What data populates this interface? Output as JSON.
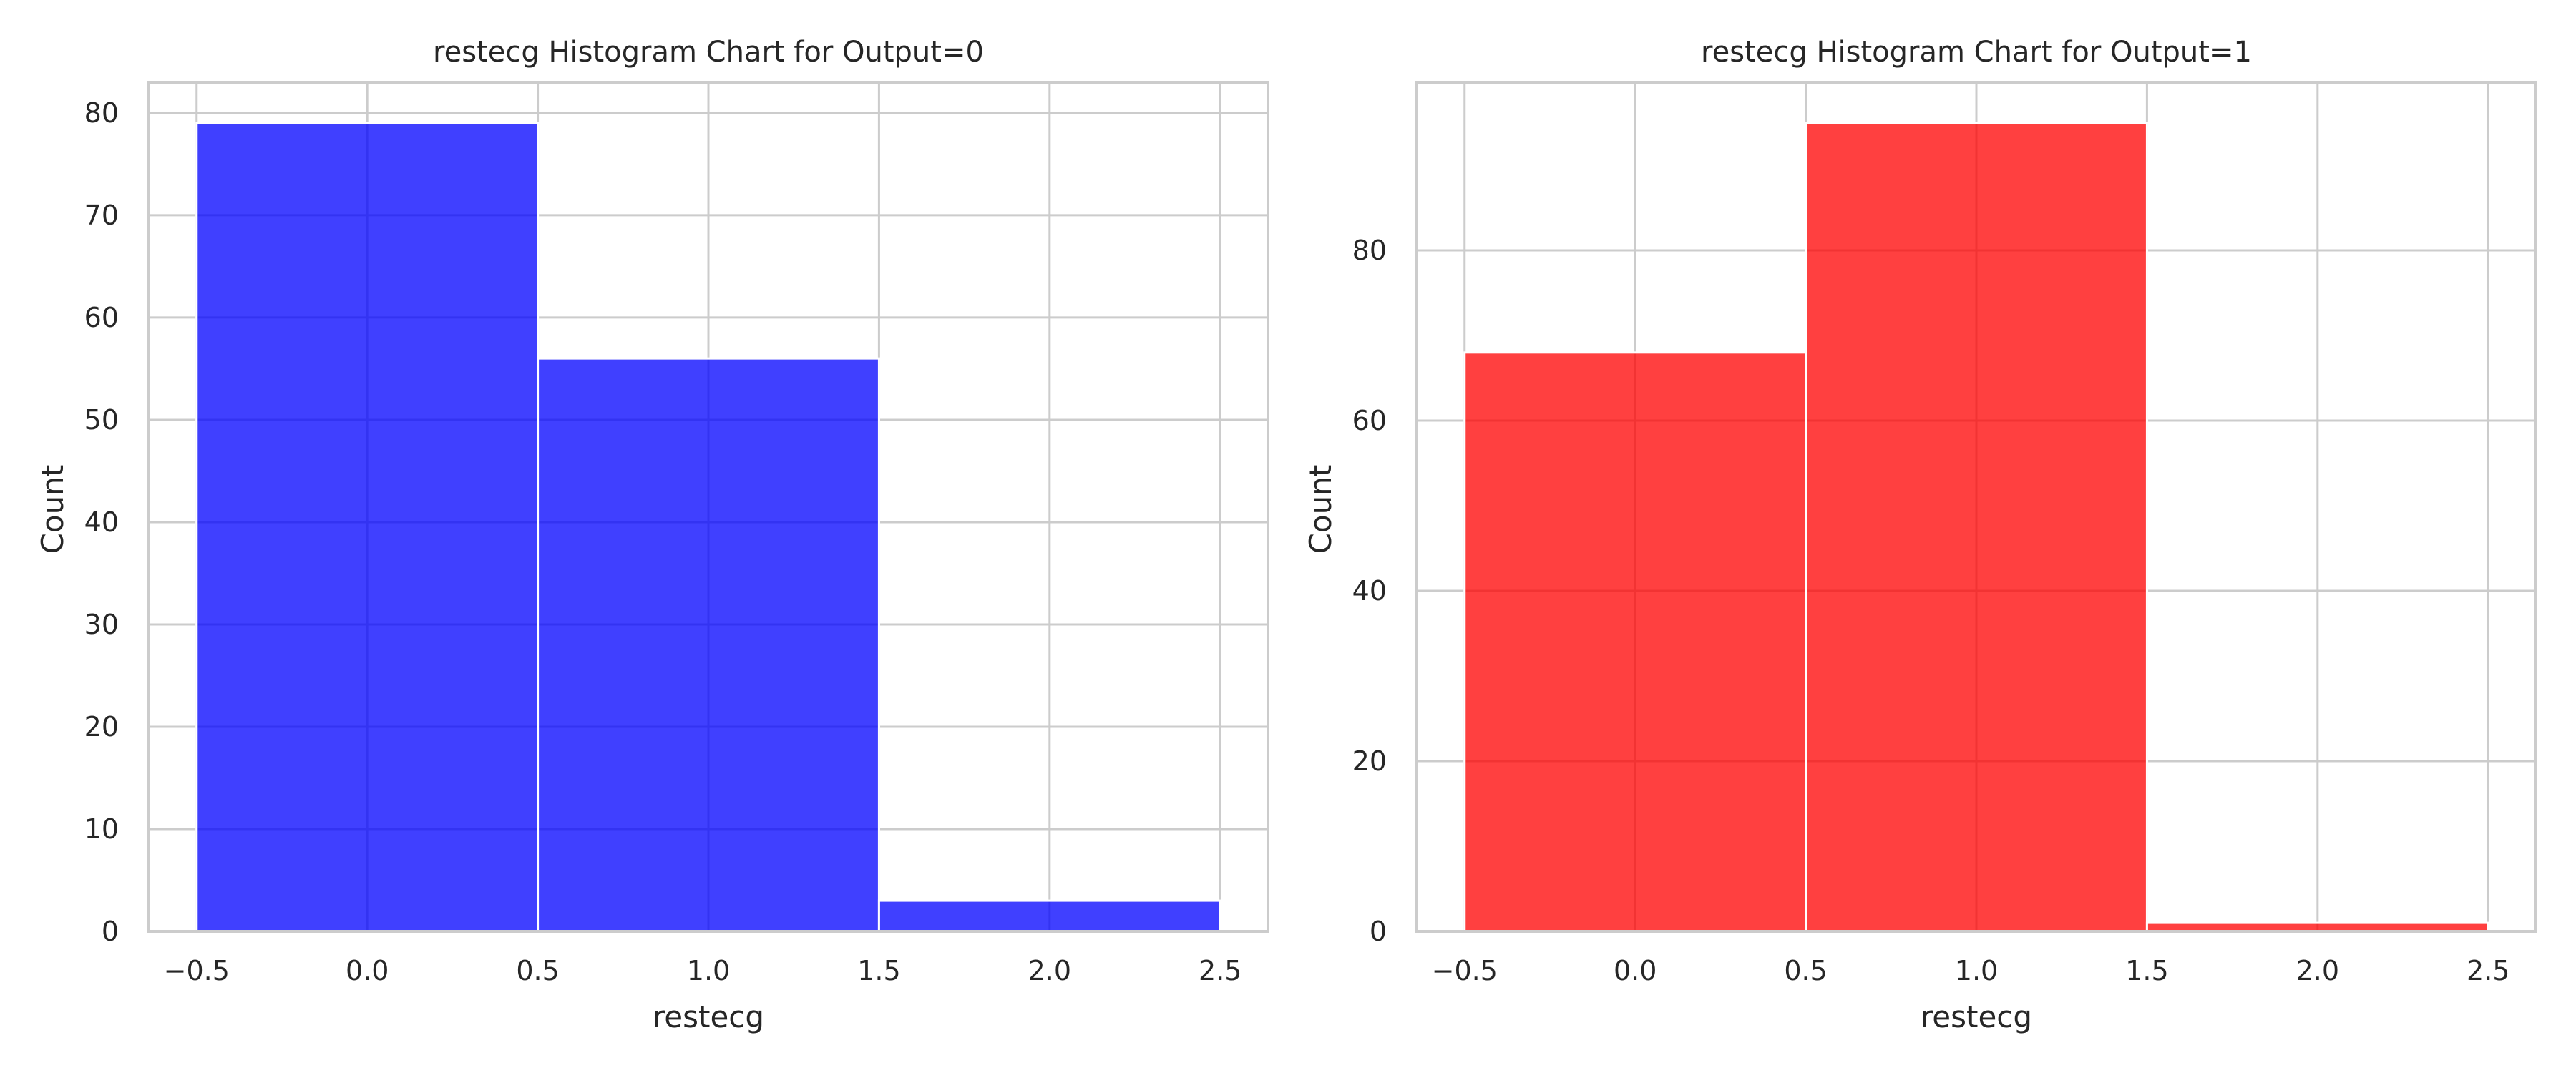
{
  "figure": {
    "background": "#ffffff",
    "grid_color": "#cccccc"
  },
  "chart_data": [
    {
      "type": "bar",
      "title": "restecg Histogram Chart for Output=0",
      "xlabel": "restecg",
      "ylabel": "Count",
      "color": "#0000ff",
      "alpha": 0.75,
      "bins": [
        {
          "x_start": -0.5,
          "x_end": 0.5,
          "count": 79
        },
        {
          "x_start": 0.5,
          "x_end": 1.5,
          "count": 56
        },
        {
          "x_start": 1.5,
          "x_end": 2.5,
          "count": 3
        }
      ],
      "xlim": [
        -0.64,
        2.64
      ],
      "ylim": [
        0,
        83
      ],
      "xticks": [
        -0.5,
        0.0,
        0.5,
        1.0,
        1.5,
        2.0,
        2.5
      ],
      "xtick_labels": [
        "−0.5",
        "0.0",
        "0.5",
        "1.0",
        "1.5",
        "2.0",
        "2.5"
      ],
      "yticks": [
        0,
        10,
        20,
        30,
        40,
        50,
        60,
        70,
        80
      ],
      "ytick_labels": [
        "0",
        "10",
        "20",
        "30",
        "40",
        "50",
        "60",
        "70",
        "80"
      ],
      "grid": true
    },
    {
      "type": "bar",
      "title": "restecg Histogram Chart for Output=1",
      "xlabel": "restecg",
      "ylabel": "Count",
      "color": "#ff0000",
      "alpha": 0.75,
      "bins": [
        {
          "x_start": -0.5,
          "x_end": 0.5,
          "count": 68
        },
        {
          "x_start": 0.5,
          "x_end": 1.5,
          "count": 95
        },
        {
          "x_start": 1.5,
          "x_end": 2.5,
          "count": 1
        }
      ],
      "xlim": [
        -0.64,
        2.64
      ],
      "ylim": [
        0,
        99.75
      ],
      "xticks": [
        -0.5,
        0.0,
        0.5,
        1.0,
        1.5,
        2.0,
        2.5
      ],
      "xtick_labels": [
        "−0.5",
        "0.0",
        "0.5",
        "1.0",
        "1.5",
        "2.0",
        "2.5"
      ],
      "yticks": [
        0,
        20,
        40,
        60,
        80
      ],
      "ytick_labels": [
        "0",
        "20",
        "40",
        "60",
        "80"
      ],
      "grid": true
    }
  ]
}
